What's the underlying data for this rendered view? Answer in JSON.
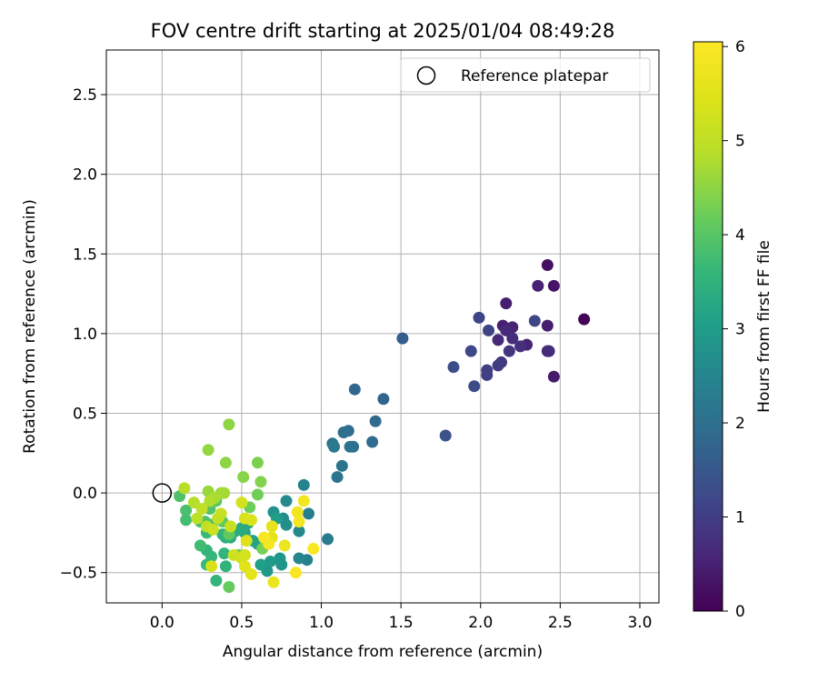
{
  "chart_data": {
    "type": "scatter",
    "title": "FOV centre drift starting at 2025/01/04 08:49:28",
    "xlabel": "Angular distance from reference (arcmin)",
    "ylabel": "Rotation from reference (arcmin)",
    "xlim": [
      -0.35,
      3.12
    ],
    "ylim": [
      -0.69,
      2.78
    ],
    "xticks": [
      0.0,
      0.5,
      1.0,
      1.5,
      2.0,
      2.5,
      3.0
    ],
    "xtick_labels": [
      "0.0",
      "0.5",
      "1.0",
      "1.5",
      "2.0",
      "2.5",
      "3.0"
    ],
    "yticks": [
      -0.5,
      0.0,
      0.5,
      1.0,
      1.5,
      2.0,
      2.5
    ],
    "ytick_labels": [
      "−0.5",
      "0.0",
      "0.5",
      "1.0",
      "1.5",
      "2.0",
      "2.5"
    ],
    "grid": true,
    "legend": {
      "position": "top-right",
      "entries": [
        "Reference platepar"
      ]
    },
    "reference_point": {
      "x": 0.0,
      "y": 0.0
    },
    "colorbar": {
      "label": "Hours from first FF file",
      "colormap": "viridis",
      "range": [
        0,
        6.05
      ],
      "ticks": [
        0,
        1,
        2,
        3,
        4,
        5,
        6
      ],
      "tick_labels": [
        "0",
        "1",
        "2",
        "3",
        "4",
        "5",
        "6"
      ]
    },
    "points": [
      {
        "x": 2.65,
        "y": 1.09,
        "c": 0.05
      },
      {
        "x": 2.42,
        "y": 1.43,
        "c": 0.2
      },
      {
        "x": 2.46,
        "y": 1.3,
        "c": 0.3
      },
      {
        "x": 2.46,
        "y": 0.73,
        "c": 0.4
      },
      {
        "x": 2.36,
        "y": 1.3,
        "c": 0.5
      },
      {
        "x": 2.42,
        "y": 1.05,
        "c": 0.45
      },
      {
        "x": 2.42,
        "y": 0.89,
        "c": 0.6
      },
      {
        "x": 2.43,
        "y": 0.89,
        "c": 0.7
      },
      {
        "x": 2.29,
        "y": 0.93,
        "c": 0.55
      },
      {
        "x": 2.16,
        "y": 1.19,
        "c": 0.45
      },
      {
        "x": 2.14,
        "y": 1.05,
        "c": 0.5
      },
      {
        "x": 2.2,
        "y": 1.04,
        "c": 0.55
      },
      {
        "x": 2.11,
        "y": 0.96,
        "c": 0.6
      },
      {
        "x": 2.16,
        "y": 1.02,
        "c": 0.65
      },
      {
        "x": 2.2,
        "y": 0.97,
        "c": 0.7
      },
      {
        "x": 2.25,
        "y": 0.92,
        "c": 0.75
      },
      {
        "x": 2.18,
        "y": 0.89,
        "c": 0.85
      },
      {
        "x": 2.13,
        "y": 0.82,
        "c": 0.9
      },
      {
        "x": 2.11,
        "y": 0.8,
        "c": 0.95
      },
      {
        "x": 2.04,
        "y": 0.77,
        "c": 1.0
      },
      {
        "x": 2.04,
        "y": 0.74,
        "c": 1.05
      },
      {
        "x": 2.05,
        "y": 1.02,
        "c": 1.1
      },
      {
        "x": 1.99,
        "y": 1.1,
        "c": 1.15
      },
      {
        "x": 1.94,
        "y": 0.89,
        "c": 1.2
      },
      {
        "x": 1.96,
        "y": 0.67,
        "c": 1.25
      },
      {
        "x": 1.83,
        "y": 0.79,
        "c": 1.3
      },
      {
        "x": 2.34,
        "y": 1.08,
        "c": 1.15
      },
      {
        "x": 1.78,
        "y": 0.36,
        "c": 1.4
      },
      {
        "x": 1.51,
        "y": 0.97,
        "c": 1.6
      },
      {
        "x": 1.39,
        "y": 0.59,
        "c": 1.75
      },
      {
        "x": 1.21,
        "y": 0.65,
        "c": 1.8
      },
      {
        "x": 1.34,
        "y": 0.45,
        "c": 1.85
      },
      {
        "x": 1.32,
        "y": 0.32,
        "c": 1.9
      },
      {
        "x": 1.17,
        "y": 0.39,
        "c": 1.95
      },
      {
        "x": 1.14,
        "y": 0.38,
        "c": 2.0
      },
      {
        "x": 1.2,
        "y": 0.29,
        "c": 2.0
      },
      {
        "x": 1.18,
        "y": 0.29,
        "c": 2.05
      },
      {
        "x": 1.13,
        "y": 0.17,
        "c": 2.1
      },
      {
        "x": 1.1,
        "y": 0.1,
        "c": 2.15
      },
      {
        "x": 1.07,
        "y": 0.31,
        "c": 2.1
      },
      {
        "x": 1.08,
        "y": 0.29,
        "c": 2.2
      },
      {
        "x": 1.04,
        "y": -0.29,
        "c": 2.25
      },
      {
        "x": 0.92,
        "y": -0.13,
        "c": 2.35
      },
      {
        "x": 0.91,
        "y": -0.42,
        "c": 2.4
      },
      {
        "x": 0.89,
        "y": 0.05,
        "c": 2.45
      },
      {
        "x": 0.86,
        "y": -0.41,
        "c": 2.5
      },
      {
        "x": 0.86,
        "y": -0.24,
        "c": 2.55
      },
      {
        "x": 0.78,
        "y": -0.05,
        "c": 2.6
      },
      {
        "x": 0.76,
        "y": -0.16,
        "c": 2.65
      },
      {
        "x": 0.78,
        "y": -0.2,
        "c": 2.7
      },
      {
        "x": 0.7,
        "y": -0.12,
        "c": 2.75
      },
      {
        "x": 0.75,
        "y": -0.45,
        "c": 2.8
      },
      {
        "x": 0.74,
        "y": -0.41,
        "c": 2.85
      },
      {
        "x": 0.66,
        "y": -0.49,
        "c": 2.9
      },
      {
        "x": 0.68,
        "y": -0.43,
        "c": 2.95
      },
      {
        "x": 0.72,
        "y": -0.16,
        "c": 3.0
      },
      {
        "x": 0.62,
        "y": -0.45,
        "c": 3.05
      },
      {
        "x": 0.6,
        "y": -0.32,
        "c": 3.1
      },
      {
        "x": 0.57,
        "y": -0.3,
        "c": 3.15
      },
      {
        "x": 0.54,
        "y": -0.19,
        "c": 3.2
      },
      {
        "x": 0.52,
        "y": -0.25,
        "c": 3.25
      },
      {
        "x": 0.5,
        "y": -0.22,
        "c": 3.3
      },
      {
        "x": 0.46,
        "y": -0.24,
        "c": 3.35
      },
      {
        "x": 0.43,
        "y": -0.28,
        "c": 3.4
      },
      {
        "x": 0.4,
        "y": -0.28,
        "c": 3.45
      },
      {
        "x": 0.38,
        "y": -0.26,
        "c": 3.5
      },
      {
        "x": 0.4,
        "y": -0.46,
        "c": 3.5
      },
      {
        "x": 0.39,
        "y": -0.38,
        "c": 3.55
      },
      {
        "x": 0.34,
        "y": -0.55,
        "c": 3.55
      },
      {
        "x": 0.31,
        "y": -0.4,
        "c": 3.6
      },
      {
        "x": 0.28,
        "y": -0.36,
        "c": 3.6
      },
      {
        "x": 0.28,
        "y": -0.45,
        "c": 3.65
      },
      {
        "x": 0.28,
        "y": -0.25,
        "c": 3.7
      },
      {
        "x": 0.31,
        "y": -0.2,
        "c": 3.7
      },
      {
        "x": 0.24,
        "y": -0.33,
        "c": 3.75
      },
      {
        "x": 0.24,
        "y": -0.18,
        "c": 3.8
      },
      {
        "x": 0.15,
        "y": -0.17,
        "c": 3.8
      },
      {
        "x": 0.15,
        "y": -0.11,
        "c": 3.85
      },
      {
        "x": 0.11,
        "y": -0.02,
        "c": 3.9
      },
      {
        "x": 0.27,
        "y": -0.18,
        "c": 3.9
      },
      {
        "x": 0.3,
        "y": -0.1,
        "c": 3.95
      },
      {
        "x": 0.3,
        "y": -0.06,
        "c": 4.0
      },
      {
        "x": 0.34,
        "y": -0.05,
        "c": 4.05
      },
      {
        "x": 0.38,
        "y": -0.18,
        "c": 4.1
      },
      {
        "x": 0.42,
        "y": -0.26,
        "c": 4.1
      },
      {
        "x": 0.42,
        "y": -0.59,
        "c": 4.15
      },
      {
        "x": 0.55,
        "y": -0.09,
        "c": 4.2
      },
      {
        "x": 0.48,
        "y": -0.39,
        "c": 4.2
      },
      {
        "x": 0.6,
        "y": -0.01,
        "c": 4.25
      },
      {
        "x": 0.63,
        "y": -0.35,
        "c": 4.3
      },
      {
        "x": 0.6,
        "y": 0.19,
        "c": 4.35
      },
      {
        "x": 0.62,
        "y": 0.07,
        "c": 4.4
      },
      {
        "x": 0.51,
        "y": 0.1,
        "c": 4.45
      },
      {
        "x": 0.4,
        "y": 0.19,
        "c": 4.5
      },
      {
        "x": 0.42,
        "y": 0.43,
        "c": 4.5
      },
      {
        "x": 0.29,
        "y": 0.27,
        "c": 4.55
      },
      {
        "x": 0.29,
        "y": 0.01,
        "c": 4.6
      },
      {
        "x": 0.37,
        "y": 0.0,
        "c": 4.65
      },
      {
        "x": 0.39,
        "y": 0.0,
        "c": 4.7
      },
      {
        "x": 0.33,
        "y": -0.03,
        "c": 4.75
      },
      {
        "x": 0.3,
        "y": -0.05,
        "c": 4.8
      },
      {
        "x": 0.2,
        "y": -0.06,
        "c": 4.85
      },
      {
        "x": 0.14,
        "y": 0.03,
        "c": 4.9
      },
      {
        "x": 0.22,
        "y": -0.16,
        "c": 4.95
      },
      {
        "x": 0.25,
        "y": -0.1,
        "c": 5.0
      },
      {
        "x": 0.28,
        "y": -0.21,
        "c": 5.0
      },
      {
        "x": 0.35,
        "y": -0.16,
        "c": 5.05
      },
      {
        "x": 0.37,
        "y": -0.13,
        "c": 5.1
      },
      {
        "x": 0.32,
        "y": -0.23,
        "c": 5.15
      },
      {
        "x": 0.43,
        "y": -0.21,
        "c": 5.15
      },
      {
        "x": 0.45,
        "y": -0.39,
        "c": 5.2
      },
      {
        "x": 0.5,
        "y": -0.41,
        "c": 5.25
      },
      {
        "x": 0.52,
        "y": -0.39,
        "c": 5.3
      },
      {
        "x": 0.5,
        "y": -0.06,
        "c": 5.3
      },
      {
        "x": 0.52,
        "y": -0.16,
        "c": 5.35
      },
      {
        "x": 0.56,
        "y": -0.17,
        "c": 5.4
      },
      {
        "x": 0.53,
        "y": -0.3,
        "c": 5.45
      },
      {
        "x": 0.52,
        "y": -0.46,
        "c": 5.5
      },
      {
        "x": 0.56,
        "y": -0.51,
        "c": 5.55
      },
      {
        "x": 0.69,
        "y": -0.28,
        "c": 5.6
      },
      {
        "x": 0.69,
        "y": -0.21,
        "c": 5.65
      },
      {
        "x": 0.7,
        "y": -0.56,
        "c": 5.7
      },
      {
        "x": 0.77,
        "y": -0.33,
        "c": 5.75
      },
      {
        "x": 0.85,
        "y": -0.12,
        "c": 5.8
      },
      {
        "x": 0.89,
        "y": -0.05,
        "c": 5.85
      },
      {
        "x": 0.86,
        "y": -0.18,
        "c": 5.9
      },
      {
        "x": 0.84,
        "y": -0.5,
        "c": 5.95
      },
      {
        "x": 0.95,
        "y": -0.35,
        "c": 6.0
      },
      {
        "x": 0.64,
        "y": -0.28,
        "c": 6.0
      },
      {
        "x": 0.67,
        "y": -0.32,
        "c": 5.9
      },
      {
        "x": 0.31,
        "y": -0.46,
        "c": 5.35
      }
    ]
  }
}
